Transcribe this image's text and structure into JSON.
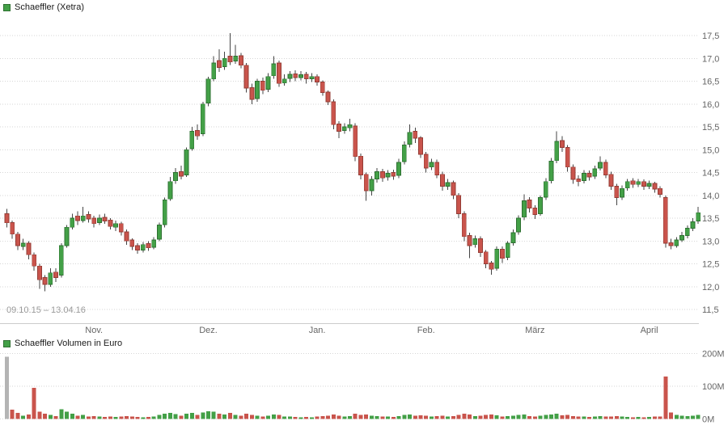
{
  "price_chart": {
    "legend_label": "Schaeffler (Xetra)",
    "date_range": "09.10.15 – 13.04.16",
    "y_axis_labels": [
      "17,5",
      "17,0",
      "16,5",
      "16,0",
      "15,5",
      "15,0",
      "14,5",
      "14,0",
      "13,5",
      "13,0",
      "12,5",
      "12,0",
      "11,5"
    ],
    "x_axis_labels": [
      "Nov.",
      "Dez.",
      "Jan.",
      "Feb.",
      "März",
      "April"
    ]
  },
  "volume_chart": {
    "legend_label": "Schaeffler Volumen in Euro",
    "y_axis_labels": [
      "200M",
      "100M",
      "0M"
    ]
  },
  "colors": {
    "up_fill": "#43a047",
    "up_border": "#2e7031",
    "down_fill": "#c9544c",
    "down_border": "#943c35",
    "wick": "#444444",
    "grid": "#d6d6d6",
    "axis_line": "#cccccc",
    "axis_text": "#666666",
    "volume_neutral": "#b4b4b4"
  },
  "chart_data": {
    "type": "candlestick",
    "title": "Schaeffler (Xetra)",
    "period": "09.10.15 – 13.04.16",
    "price_axis": {
      "min": 11.5,
      "max": 17.5,
      "step": 0.5,
      "unit": "EUR"
    },
    "x_axis": {
      "ticks": [
        "Nov.",
        "Dez.",
        "Jan.",
        "Feb.",
        "März",
        "April"
      ],
      "tick_candle_indices": [
        16,
        37,
        57,
        77,
        97,
        118
      ]
    },
    "candles": [
      [
        13.6,
        13.7,
        13.3,
        13.4
      ],
      [
        13.4,
        13.45,
        13.05,
        13.15
      ],
      [
        13.15,
        13.2,
        12.8,
        12.9
      ],
      [
        12.88,
        13.05,
        12.8,
        12.95
      ],
      [
        12.95,
        13.0,
        12.6,
        12.7
      ],
      [
        12.7,
        12.75,
        12.35,
        12.45
      ],
      [
        12.45,
        12.5,
        11.95,
        12.15
      ],
      [
        12.2,
        12.25,
        11.9,
        12.05
      ],
      [
        12.05,
        12.4,
        12.0,
        12.3
      ],
      [
        12.32,
        12.4,
        12.1,
        12.2
      ],
      [
        12.25,
        12.95,
        12.2,
        12.9
      ],
      [
        12.9,
        13.35,
        12.85,
        13.3
      ],
      [
        13.3,
        13.6,
        13.25,
        13.5
      ],
      [
        13.55,
        13.65,
        13.35,
        13.45
      ],
      [
        13.45,
        13.75,
        13.4,
        13.55
      ],
      [
        13.58,
        13.65,
        13.4,
        13.48
      ],
      [
        13.5,
        13.55,
        13.3,
        13.38
      ],
      [
        13.4,
        13.58,
        13.35,
        13.5
      ],
      [
        13.52,
        13.6,
        13.38,
        13.44
      ],
      [
        13.46,
        13.5,
        13.25,
        13.32
      ],
      [
        13.3,
        13.45,
        13.22,
        13.38
      ],
      [
        13.38,
        13.42,
        13.12,
        13.2
      ],
      [
        13.2,
        13.25,
        12.92,
        13.0
      ],
      [
        13.02,
        13.06,
        12.8,
        12.88
      ],
      [
        12.9,
        12.95,
        12.72,
        12.8
      ],
      [
        12.8,
        12.98,
        12.75,
        12.92
      ],
      [
        12.94,
        13.0,
        12.78,
        12.85
      ],
      [
        12.86,
        13.08,
        12.82,
        13.02
      ],
      [
        13.04,
        13.4,
        13.0,
        13.35
      ],
      [
        13.36,
        13.95,
        13.3,
        13.9
      ],
      [
        13.92,
        14.4,
        13.88,
        14.3
      ],
      [
        14.32,
        14.6,
        14.25,
        14.5
      ],
      [
        14.52,
        14.65,
        14.35,
        14.42
      ],
      [
        14.45,
        15.05,
        14.4,
        15.0
      ],
      [
        15.02,
        15.5,
        14.98,
        15.4
      ],
      [
        15.42,
        15.55,
        15.22,
        15.3
      ],
      [
        15.35,
        16.05,
        15.3,
        16.0
      ],
      [
        16.02,
        16.6,
        15.95,
        16.55
      ],
      [
        16.55,
        17.05,
        16.5,
        16.9
      ],
      [
        16.95,
        17.2,
        16.7,
        16.8
      ],
      [
        16.82,
        17.15,
        16.75,
        17.0
      ],
      [
        17.05,
        17.55,
        16.85,
        16.92
      ],
      [
        16.94,
        17.3,
        16.88,
        17.05
      ],
      [
        17.06,
        17.12,
        16.78,
        16.85
      ],
      [
        16.85,
        16.9,
        16.25,
        16.35
      ],
      [
        16.36,
        16.45,
        16.0,
        16.1
      ],
      [
        16.12,
        16.55,
        16.05,
        16.5
      ],
      [
        16.5,
        16.58,
        16.22,
        16.3
      ],
      [
        16.32,
        16.68,
        16.26,
        16.6
      ],
      [
        16.62,
        17.05,
        16.55,
        16.88
      ],
      [
        16.9,
        16.95,
        16.38,
        16.45
      ],
      [
        16.46,
        16.65,
        16.4,
        16.55
      ],
      [
        16.56,
        16.72,
        16.48,
        16.65
      ],
      [
        16.66,
        16.74,
        16.5,
        16.58
      ],
      [
        16.58,
        16.72,
        16.52,
        16.64
      ],
      [
        16.65,
        16.7,
        16.45,
        16.55
      ],
      [
        16.55,
        16.68,
        16.48,
        16.6
      ],
      [
        16.6,
        16.65,
        16.4,
        16.48
      ],
      [
        16.48,
        16.52,
        16.18,
        16.25
      ],
      [
        16.26,
        16.3,
        15.98,
        16.05
      ],
      [
        16.05,
        16.1,
        15.45,
        15.55
      ],
      [
        15.56,
        15.62,
        15.25,
        15.4
      ],
      [
        15.42,
        15.58,
        15.35,
        15.5
      ],
      [
        15.48,
        15.68,
        15.4,
        15.55
      ],
      [
        15.52,
        15.58,
        14.75,
        14.85
      ],
      [
        14.86,
        14.92,
        14.35,
        14.45
      ],
      [
        14.46,
        14.5,
        13.88,
        14.1
      ],
      [
        14.1,
        14.42,
        14.0,
        14.35
      ],
      [
        14.36,
        14.6,
        14.28,
        14.52
      ],
      [
        14.52,
        14.58,
        14.3,
        14.38
      ],
      [
        14.4,
        14.55,
        14.32,
        14.48
      ],
      [
        14.5,
        14.56,
        14.34,
        14.42
      ],
      [
        14.44,
        14.8,
        14.38,
        14.72
      ],
      [
        14.74,
        15.18,
        14.68,
        15.1
      ],
      [
        15.12,
        15.55,
        15.05,
        15.38
      ],
      [
        15.4,
        15.48,
        15.15,
        15.25
      ],
      [
        15.26,
        15.3,
        14.82,
        14.9
      ],
      [
        14.9,
        14.95,
        14.5,
        14.6
      ],
      [
        14.62,
        14.8,
        14.55,
        14.72
      ],
      [
        14.72,
        14.78,
        14.38,
        14.45
      ],
      [
        14.46,
        14.52,
        14.1,
        14.2
      ],
      [
        14.2,
        14.36,
        14.12,
        14.28
      ],
      [
        14.28,
        14.32,
        13.92,
        14.0
      ],
      [
        14.0,
        14.05,
        13.5,
        13.6
      ],
      [
        13.6,
        13.65,
        13.0,
        13.1
      ],
      [
        13.12,
        13.18,
        12.62,
        12.9
      ],
      [
        12.92,
        13.12,
        12.85,
        13.05
      ],
      [
        13.05,
        13.1,
        12.65,
        12.75
      ],
      [
        12.76,
        12.8,
        12.4,
        12.5
      ],
      [
        12.52,
        12.56,
        12.26,
        12.38
      ],
      [
        12.4,
        12.88,
        12.35,
        12.82
      ],
      [
        12.82,
        12.88,
        12.52,
        12.62
      ],
      [
        12.64,
        13.0,
        12.58,
        12.95
      ],
      [
        12.96,
        13.25,
        12.9,
        13.18
      ],
      [
        13.2,
        13.56,
        13.14,
        13.5
      ],
      [
        13.52,
        14.02,
        13.46,
        13.88
      ],
      [
        13.9,
        13.96,
        13.62,
        13.72
      ],
      [
        13.72,
        13.78,
        13.48,
        13.58
      ],
      [
        13.6,
        14.0,
        13.55,
        13.95
      ],
      [
        13.96,
        14.38,
        13.9,
        14.3
      ],
      [
        14.32,
        14.82,
        14.26,
        14.75
      ],
      [
        14.76,
        15.4,
        14.7,
        15.18
      ],
      [
        15.2,
        15.3,
        14.95,
        15.05
      ],
      [
        15.05,
        15.1,
        14.52,
        14.62
      ],
      [
        14.62,
        14.68,
        14.25,
        14.35
      ],
      [
        14.36,
        14.44,
        14.2,
        14.3
      ],
      [
        14.32,
        14.55,
        14.26,
        14.48
      ],
      [
        14.48,
        14.54,
        14.32,
        14.4
      ],
      [
        14.42,
        14.65,
        14.36,
        14.58
      ],
      [
        14.6,
        14.85,
        14.54,
        14.72
      ],
      [
        14.72,
        14.78,
        14.38,
        14.45
      ],
      [
        14.46,
        14.52,
        14.12,
        14.2
      ],
      [
        14.2,
        14.25,
        13.78,
        13.95
      ],
      [
        13.96,
        14.22,
        13.9,
        14.15
      ],
      [
        14.16,
        14.36,
        14.1,
        14.3
      ],
      [
        14.32,
        14.38,
        14.16,
        14.24
      ],
      [
        14.24,
        14.36,
        14.18,
        14.3
      ],
      [
        14.3,
        14.35,
        14.12,
        14.2
      ],
      [
        14.2,
        14.32,
        14.14,
        14.26
      ],
      [
        14.26,
        14.3,
        14.06,
        14.14
      ],
      [
        14.15,
        14.2,
        13.95,
        14.02
      ],
      [
        13.95,
        14.0,
        12.85,
        12.95
      ],
      [
        12.96,
        13.05,
        12.82,
        12.9
      ],
      [
        12.9,
        13.08,
        12.85,
        13.02
      ],
      [
        13.02,
        13.2,
        12.98,
        13.12
      ],
      [
        13.12,
        13.34,
        13.06,
        13.28
      ],
      [
        13.28,
        13.5,
        13.22,
        13.42
      ],
      [
        13.44,
        13.75,
        13.38,
        13.62
      ]
    ],
    "volume": {
      "unit": "Euro (millions)",
      "axis": {
        "min": 0,
        "max": 200,
        "labels": [
          "200M",
          "100M",
          "0M"
        ]
      },
      "values": [
        190,
        28,
        18,
        10,
        14,
        95,
        22,
        16,
        12,
        9,
        30,
        22,
        16,
        10,
        12,
        8,
        9,
        7,
        6,
        8,
        6,
        7,
        9,
        8,
        6,
        5,
        6,
        7,
        12,
        16,
        18,
        15,
        10,
        16,
        18,
        12,
        20,
        24,
        22,
        16,
        14,
        18,
        12,
        10,
        16,
        12,
        10,
        8,
        10,
        14,
        12,
        8,
        7,
        6,
        5,
        6,
        5,
        8,
        9,
        10,
        14,
        10,
        8,
        9,
        16,
        12,
        14,
        10,
        9,
        7,
        8,
        6,
        9,
        12,
        14,
        10,
        11,
        10,
        8,
        9,
        10,
        7,
        9,
        12,
        16,
        14,
        9,
        10,
        12,
        13,
        11,
        8,
        9,
        10,
        12,
        13,
        9,
        8,
        10,
        12,
        14,
        16,
        11,
        12,
        9,
        7,
        8,
        6,
        7,
        9,
        8,
        7,
        9,
        7,
        6,
        5,
        6,
        5,
        6,
        7,
        8,
        130,
        20,
        12,
        10,
        9,
        10,
        12
      ],
      "color_overrides": {
        "0": "#b4b4b4"
      }
    }
  }
}
